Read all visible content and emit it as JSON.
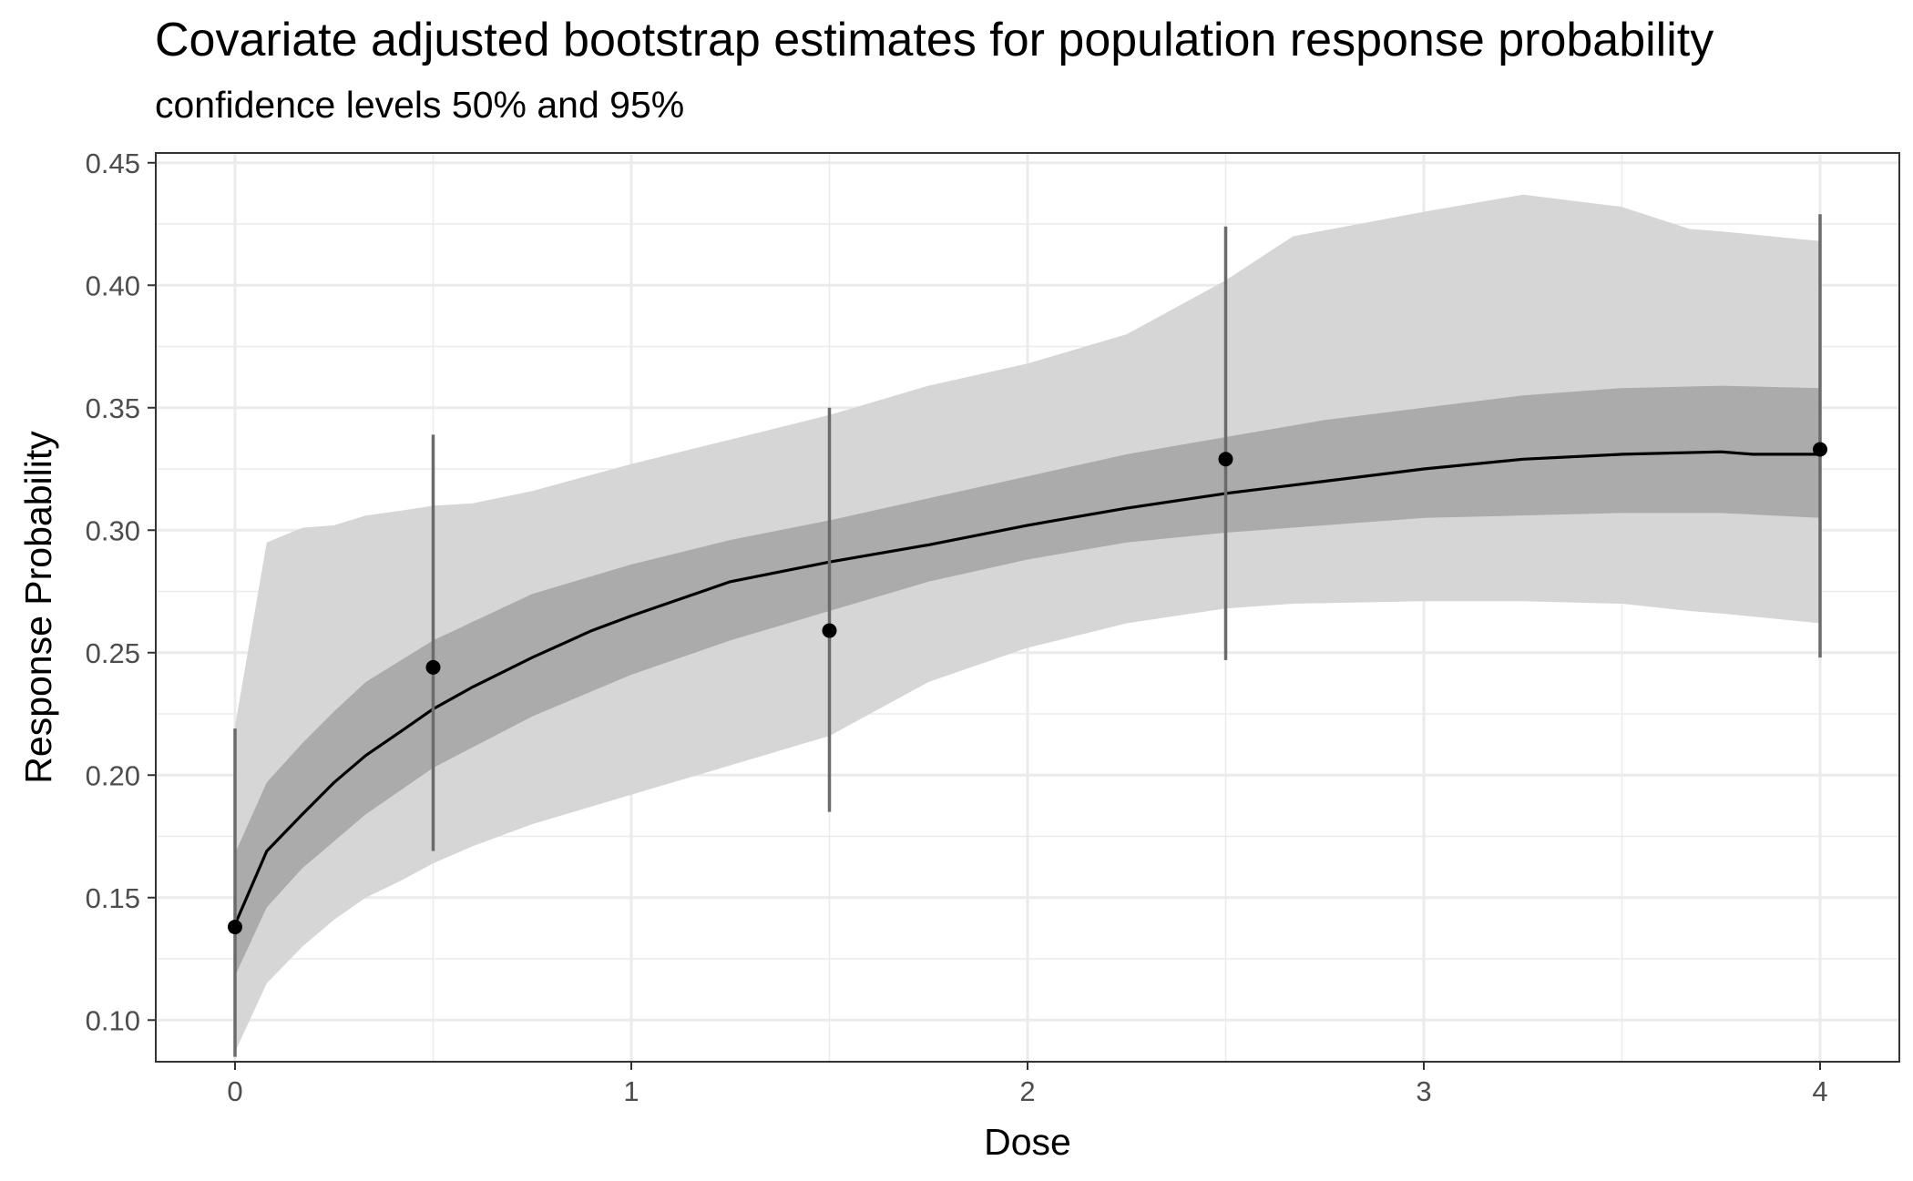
{
  "chart_data": {
    "type": "line",
    "title": "Covariate adjusted bootstrap estimates for population response probability",
    "subtitle": "confidence levels 50% and 95%",
    "xlabel": "Dose",
    "ylabel": "Response Probability",
    "xlim": [
      -0.2,
      4.2
    ],
    "ylim": [
      0.083,
      0.454
    ],
    "x_ticks": [
      0,
      1,
      2,
      3,
      4
    ],
    "x_tick_labels": [
      "0",
      "1",
      "2",
      "3",
      "4"
    ],
    "y_ticks": [
      0.1,
      0.15,
      0.2,
      0.25,
      0.3,
      0.35,
      0.4,
      0.45
    ],
    "y_tick_labels": [
      "0.10",
      "0.15",
      "0.20",
      "0.25",
      "0.30",
      "0.35",
      "0.40",
      "0.45"
    ],
    "grid": true,
    "colors": {
      "band_95": "#d6d6d6",
      "band_50": "#ababab",
      "median_line": "#000000",
      "error_bar": "#6b6b6b",
      "point": "#000000",
      "grid": "#ebebeb",
      "panel_border": "#333333"
    },
    "band_95": {
      "x": [
        0,
        0.08,
        0.17,
        0.25,
        0.33,
        0.42,
        0.5,
        0.6,
        0.75,
        1.0,
        1.25,
        1.5,
        1.75,
        2.0,
        2.25,
        2.5,
        2.67,
        3.0,
        3.25,
        3.5,
        3.67,
        3.75,
        4.0
      ],
      "lower": [
        0.087,
        0.115,
        0.13,
        0.141,
        0.15,
        0.157,
        0.164,
        0.171,
        0.18,
        0.192,
        0.204,
        0.216,
        0.238,
        0.252,
        0.262,
        0.268,
        0.27,
        0.271,
        0.271,
        0.27,
        0.267,
        0.266,
        0.262
      ],
      "upper": [
        0.22,
        0.295,
        0.301,
        0.302,
        0.306,
        0.308,
        0.31,
        0.311,
        0.316,
        0.327,
        0.337,
        0.347,
        0.359,
        0.368,
        0.38,
        0.402,
        0.42,
        0.43,
        0.437,
        0.432,
        0.423,
        0.422,
        0.418
      ]
    },
    "band_50": {
      "x": [
        0,
        0.08,
        0.17,
        0.25,
        0.33,
        0.5,
        0.75,
        1.0,
        1.25,
        1.5,
        1.75,
        2.0,
        2.25,
        2.5,
        2.75,
        3.0,
        3.25,
        3.5,
        3.75,
        4.0
      ],
      "lower": [
        0.118,
        0.146,
        0.162,
        0.173,
        0.184,
        0.203,
        0.224,
        0.241,
        0.255,
        0.267,
        0.279,
        0.288,
        0.295,
        0.299,
        0.302,
        0.305,
        0.306,
        0.307,
        0.307,
        0.305
      ],
      "upper": [
        0.168,
        0.197,
        0.213,
        0.226,
        0.238,
        0.255,
        0.274,
        0.286,
        0.296,
        0.304,
        0.313,
        0.322,
        0.331,
        0.338,
        0.345,
        0.35,
        0.355,
        0.358,
        0.359,
        0.358
      ]
    },
    "median": {
      "x": [
        0,
        0.08,
        0.17,
        0.25,
        0.33,
        0.42,
        0.5,
        0.6,
        0.75,
        0.9,
        1.0,
        1.25,
        1.5,
        1.75,
        2.0,
        2.25,
        2.5,
        2.75,
        3.0,
        3.25,
        3.5,
        3.75,
        3.83,
        4.0
      ],
      "y": [
        0.139,
        0.169,
        0.184,
        0.197,
        0.208,
        0.218,
        0.227,
        0.236,
        0.248,
        0.259,
        0.265,
        0.279,
        0.287,
        0.294,
        0.302,
        0.309,
        0.315,
        0.32,
        0.325,
        0.329,
        0.331,
        0.332,
        0.331,
        0.331
      ]
    },
    "observed": {
      "x": [
        0,
        0.5,
        1.5,
        2.5,
        4.0
      ],
      "y": [
        0.138,
        0.244,
        0.259,
        0.329,
        0.333
      ],
      "lower": [
        0.085,
        0.169,
        0.185,
        0.247,
        0.248
      ],
      "upper": [
        0.219,
        0.339,
        0.35,
        0.424,
        0.429
      ]
    }
  }
}
